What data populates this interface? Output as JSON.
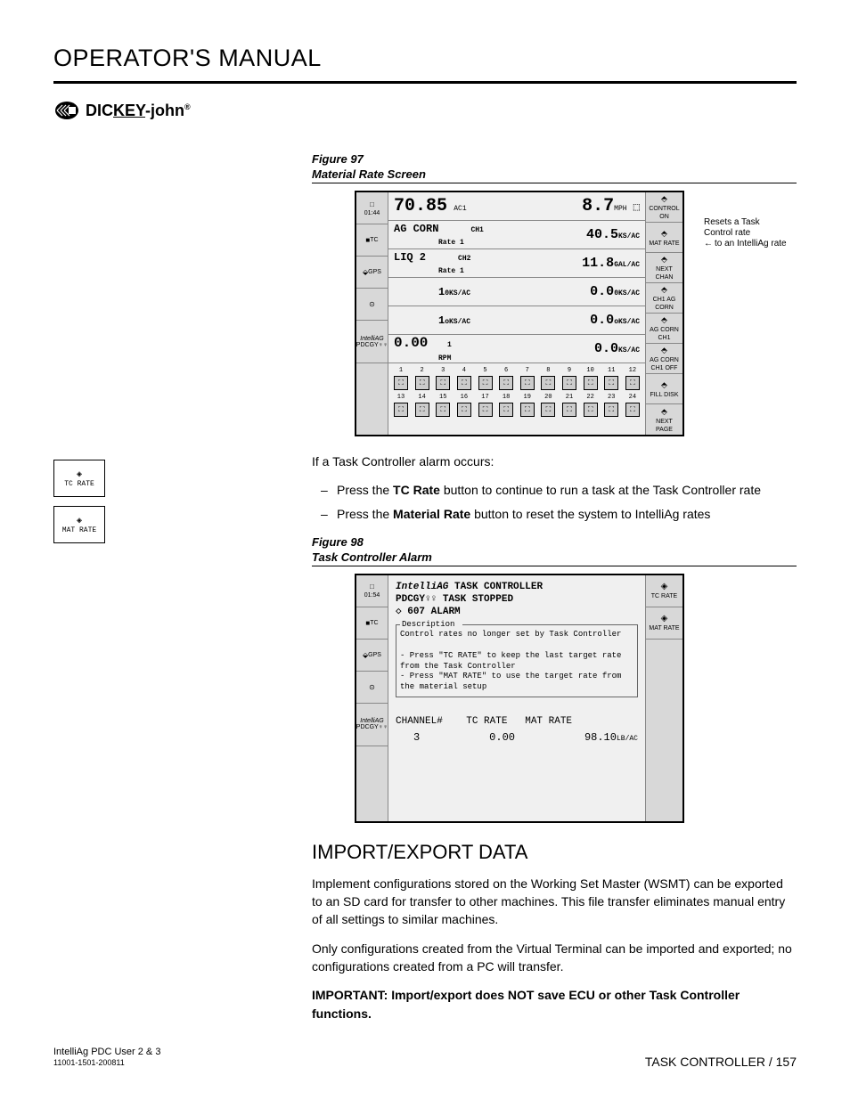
{
  "header": {
    "title": "OPERATOR'S MANUAL",
    "brand_prefix": "DIC",
    "brand_key": "KEY",
    "brand_suffix": "-john"
  },
  "figure97": {
    "label": "Figure 97",
    "title": "Material Rate Screen",
    "time": "01:44",
    "top_left_val": "70.85",
    "top_left_unit": "AC1",
    "top_right_val": "8.7",
    "top_right_unit": "MPH",
    "row1_left": "AG CORN",
    "row1_ch": "CH1",
    "row1_rate_label": "Rate 1",
    "row1_val": "40.5",
    "row1_unit": "KS/AC",
    "row2_left": "LIQ 2",
    "row2_ch": "CH2",
    "row2_rate_label": "Rate 1",
    "row2_val": "11.8",
    "row2_unit": "GAL/AC",
    "row3_left": "1",
    "row3_left_unit": "0KS/AC",
    "row3_val": "0.0",
    "row3_unit": "0KS/AC",
    "row4_left": "1",
    "row4_left_unit": "oKS/AC",
    "row4_val": "0.0",
    "row4_unit": "oKS/AC",
    "row5_left": "0.00",
    "row5_left_sub": "1",
    "row5_left_unit": "RPM",
    "row5_val": "0.0",
    "row5_unit": "KS/AC",
    "seed_row1_nums": [
      "1",
      "2",
      "3",
      "4",
      "5",
      "6",
      "7",
      "8",
      "9",
      "10",
      "11",
      "12"
    ],
    "seed_row2_nums": [
      "13",
      "14",
      "15",
      "16",
      "17",
      "18",
      "19",
      "20",
      "21",
      "22",
      "23",
      "24"
    ],
    "right_btns": [
      "CONTROL ON",
      "MAT RATE",
      "NEXT CHAN",
      "CH1 AG CORN",
      "AG CORN CH1",
      "AG CORN CH1 OFF",
      "FILL DISK",
      "NEXT PAGE"
    ],
    "left_btns_text": [
      "01:44",
      "TC",
      "GPS",
      "",
      "IntelliAG PDCGY"
    ],
    "callout_line1": "Resets a Task",
    "callout_line2": "Control rate",
    "callout_line3": "to an IntelliAg rate"
  },
  "alarm_text": "If a Task Controller alarm occurs:",
  "bullets": [
    {
      "prefix": "Press the ",
      "bold": "TC Rate",
      "suffix": " button to continue to run a task at the Task Controller rate"
    },
    {
      "prefix": "Press the ",
      "bold": "Material Rate",
      "suffix": " button to reset the system to IntelliAg rates"
    }
  ],
  "figure98": {
    "label": "Figure 98",
    "title": "Task Controller Alarm",
    "time": "01:54",
    "brand": "IntelliAG",
    "line1": "TASK CONTROLLER",
    "pdcgy": "PDCGY",
    "line2": "TASK STOPPED",
    "alarm_num": "607",
    "alarm_label": "ALARM",
    "desc_label": "Description",
    "desc_text": "Control rates no longer set by Task Controller",
    "desc_b1": "- Press \"TC RATE\" to keep the last target rate from the Task Controller",
    "desc_b2": "- Press \"MAT RATE\" to use the target rate from the material setup",
    "tbl_hdr": "CHANNEL#    TC RATE   MAT RATE",
    "tbl_ch": "3",
    "tbl_tc": "0.00",
    "tbl_mat": "98.10",
    "tbl_mat_unit": "LB/AC",
    "right_btn1": "TC RATE",
    "right_btn2": "MAT RATE",
    "left_btns": [
      "01:54",
      "TC",
      "GPS",
      "",
      "IntelliAG PDCGY"
    ]
  },
  "side_buttons": {
    "btn1": "TC RATE",
    "btn2": "MAT RATE"
  },
  "section": {
    "title": "IMPORT/EXPORT DATA",
    "p1": "Implement configurations stored on the Working Set Master (WSMT) can be exported to an SD card for transfer to other machines.  This file transfer eliminates manual entry of all settings to similar machines.",
    "p2": "Only configurations created from the Virtual Terminal can be imported and exported; no configurations created from a PC will transfer.",
    "important_label": "IMPORTANT:",
    "important_text": "Import/export does NOT save ECU or other Task Controller functions."
  },
  "footer": {
    "left_line1": "IntelliAg PDC User 2 & 3",
    "left_line2": "11001-1501-200811",
    "right": "TASK CONTROLLER / 157"
  }
}
